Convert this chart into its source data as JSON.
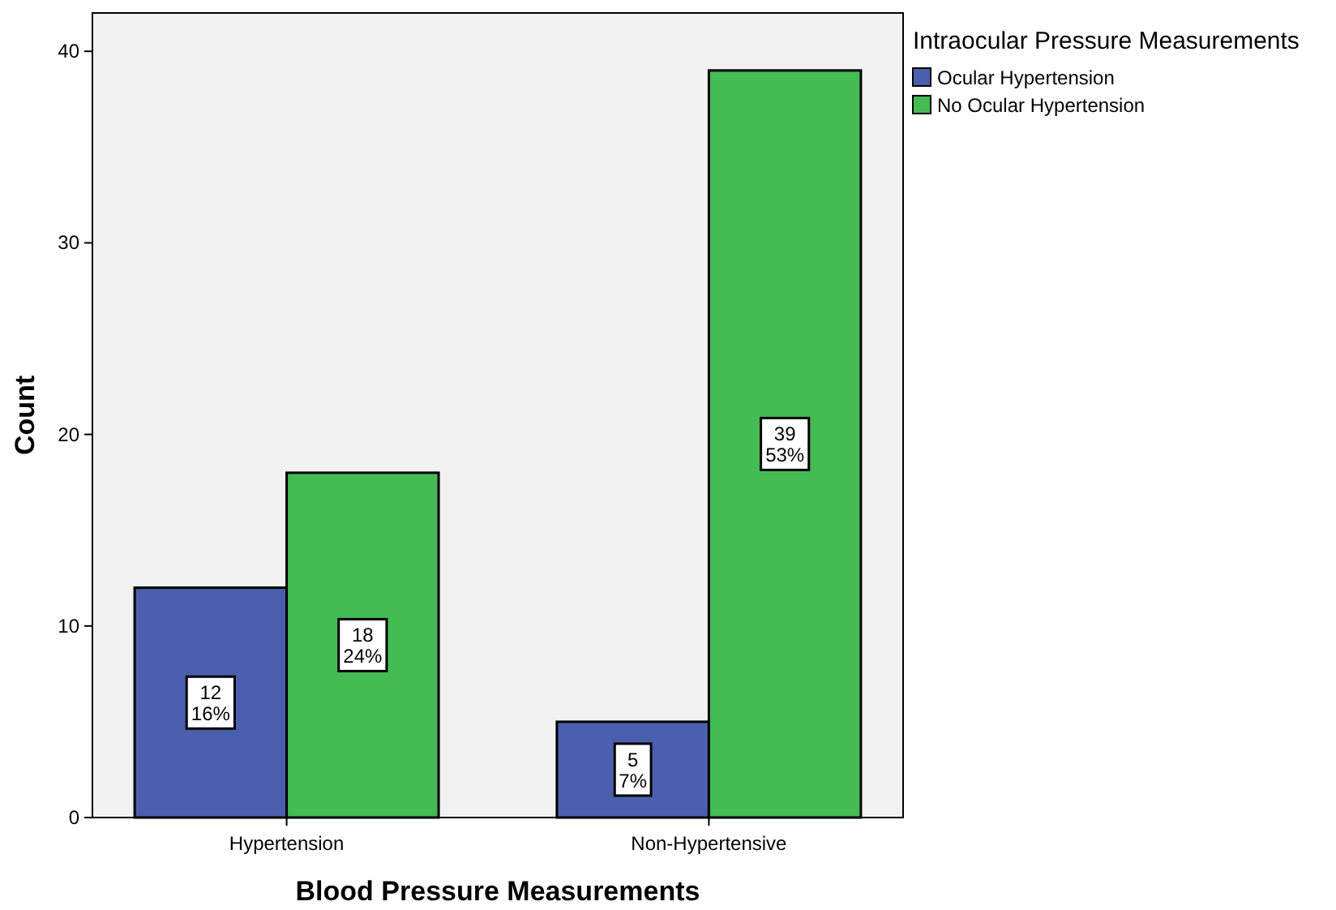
{
  "chart_data": {
    "type": "bar",
    "xlabel": "Blood Pressure Measurements",
    "ylabel": "Count",
    "legend_title": "Intraocular Pressure Measurements",
    "categories": [
      "Hypertension",
      "Non-Hypertensive"
    ],
    "series": [
      {
        "name": "Ocular Hypertension",
        "color": "#4a5fae",
        "values": [
          12,
          5
        ],
        "value_labels": [
          "12\n16%",
          "5\n7%"
        ]
      },
      {
        "name": "No Ocular Hypertension",
        "color": "#44bb55",
        "values": [
          18,
          39
        ],
        "value_labels": [
          "18\n24%",
          "39\n53%"
        ]
      }
    ],
    "ylim": [
      0,
      42
    ],
    "yticks": [
      0,
      10,
      20,
      30,
      40
    ],
    "grid": false,
    "legend": "top right"
  }
}
